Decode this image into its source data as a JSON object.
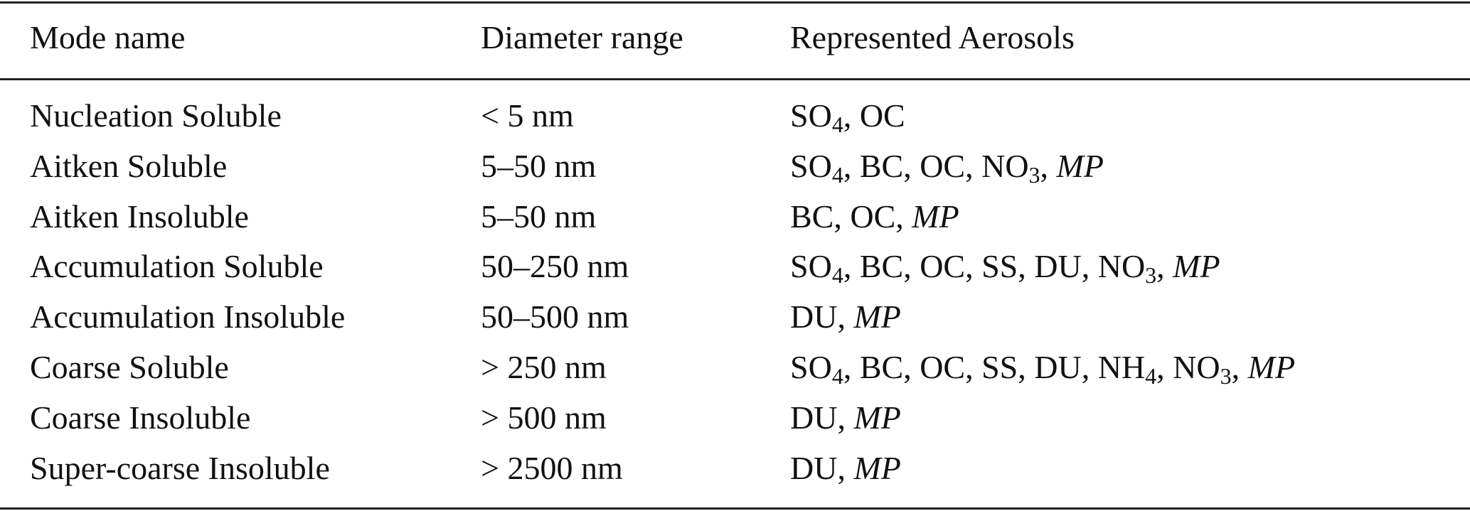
{
  "table": {
    "header": [
      "Mode name",
      "Diameter range",
      "Represented Aerosols"
    ],
    "rows": [
      {
        "mode": "Nucleation Soluble",
        "range": "< 5 nm",
        "aerosols": [
          {
            "name": "SO",
            "sub": "4"
          },
          {
            "name": "OC"
          }
        ]
      },
      {
        "mode": "Aitken Soluble",
        "range": "5–50 nm",
        "aerosols": [
          {
            "name": "SO",
            "sub": "4"
          },
          {
            "name": "BC"
          },
          {
            "name": "OC"
          },
          {
            "name": "NO",
            "sub": "3"
          },
          {
            "name": "MP",
            "italic": true
          }
        ]
      },
      {
        "mode": "Aitken Insoluble",
        "range": "5–50 nm",
        "aerosols": [
          {
            "name": "BC"
          },
          {
            "name": "OC"
          },
          {
            "name": "MP",
            "italic": true
          }
        ]
      },
      {
        "mode": "Accumulation Soluble",
        "range": "50–250 nm",
        "aerosols": [
          {
            "name": "SO",
            "sub": "4"
          },
          {
            "name": "BC"
          },
          {
            "name": "OC"
          },
          {
            "name": "SS"
          },
          {
            "name": "DU"
          },
          {
            "name": "NO",
            "sub": "3"
          },
          {
            "name": "MP",
            "italic": true
          }
        ]
      },
      {
        "mode": "Accumulation Insoluble",
        "range": "50–500 nm",
        "aerosols": [
          {
            "name": "DU"
          },
          {
            "name": "MP",
            "italic": true
          }
        ]
      },
      {
        "mode": "Coarse Soluble",
        "range": "> 250 nm",
        "aerosols": [
          {
            "name": "SO",
            "sub": "4"
          },
          {
            "name": "BC"
          },
          {
            "name": "OC"
          },
          {
            "name": "SS"
          },
          {
            "name": "DU"
          },
          {
            "name": "NH",
            "sub": "4"
          },
          {
            "name": "NO",
            "sub": "3"
          },
          {
            "name": "MP",
            "italic": true
          }
        ]
      },
      {
        "mode": "Coarse Insoluble",
        "range": "> 500 nm",
        "aerosols": [
          {
            "name": "DU"
          },
          {
            "name": "MP",
            "italic": true
          }
        ]
      },
      {
        "mode": "Super-coarse Insoluble",
        "range": "> 2500 nm",
        "aerosols": [
          {
            "name": "DU"
          },
          {
            "name": "MP",
            "italic": true
          }
        ]
      }
    ]
  }
}
